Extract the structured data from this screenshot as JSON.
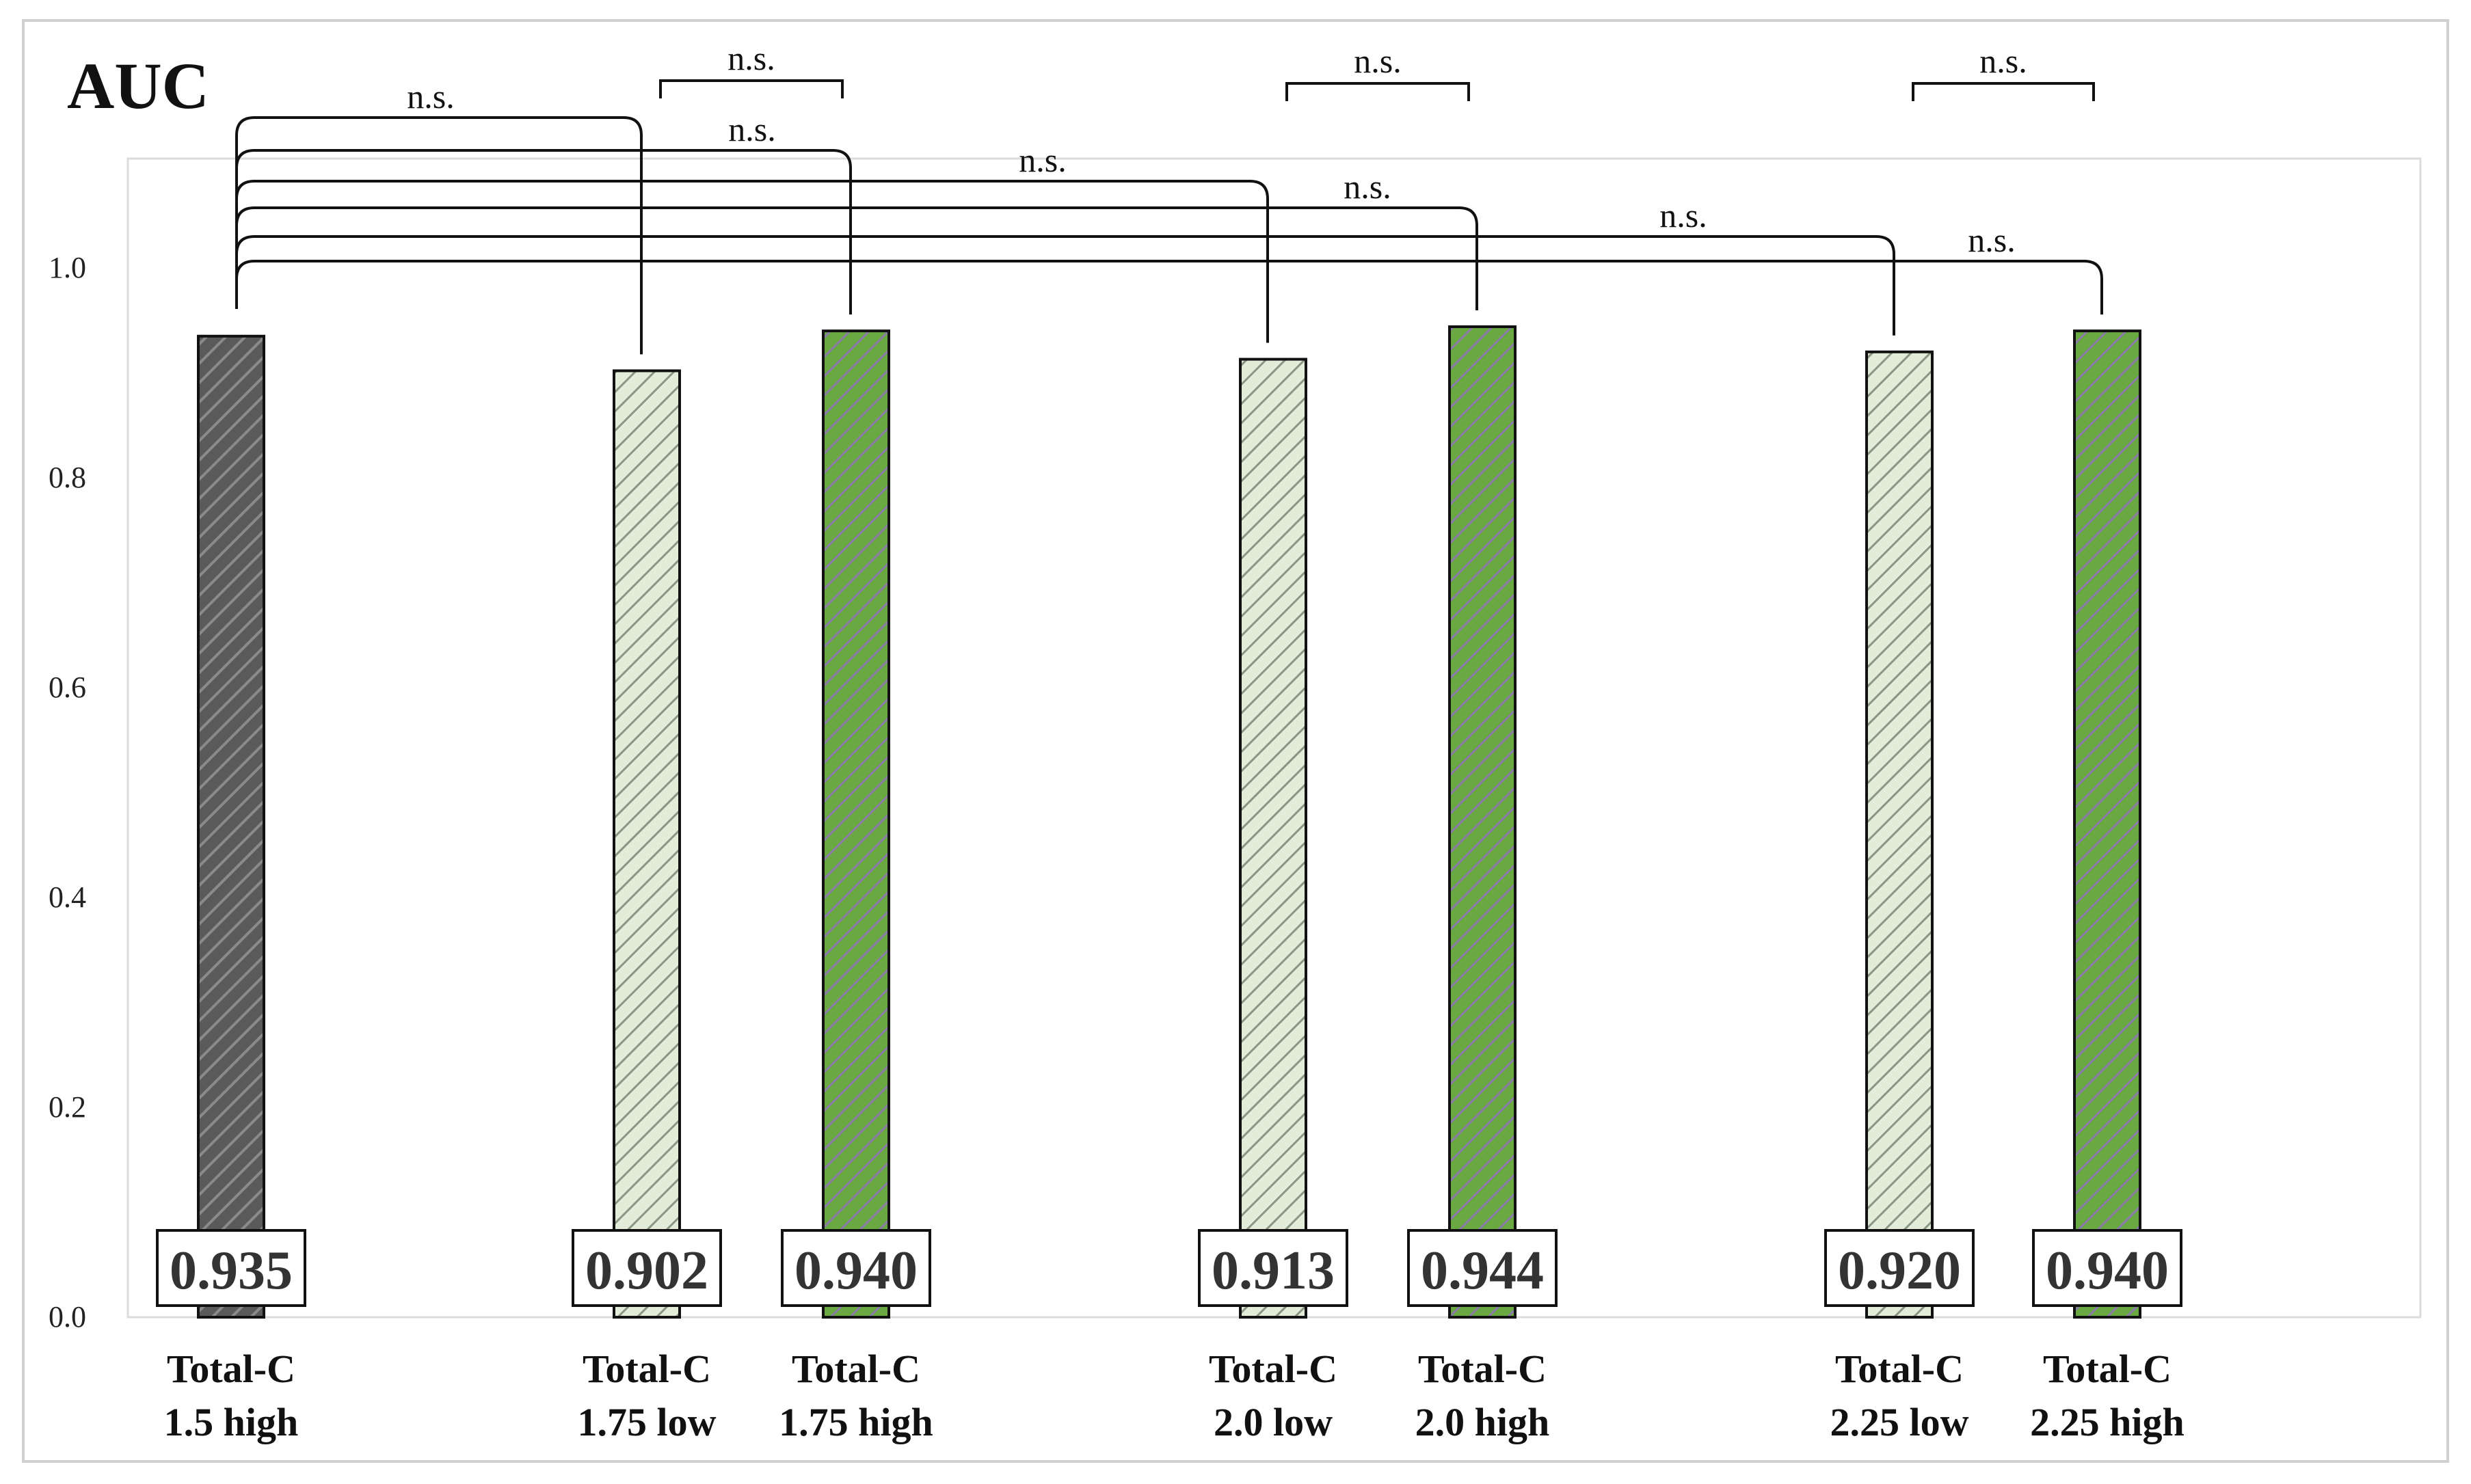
{
  "chart_data": {
    "type": "bar",
    "title": "AUC",
    "ylabel": "",
    "xlabel": "",
    "ylim": [
      0,
      1.1
    ],
    "yticks": [
      "0.0",
      "0.2",
      "0.4",
      "0.6",
      "0.8",
      "1.0"
    ],
    "grid": false,
    "legend": "none",
    "categories": [
      {
        "line1": "Total-C",
        "line2": "1.5 high"
      },
      {
        "line1": "Total-C",
        "line2": "1.75 low"
      },
      {
        "line1": "Total-C",
        "line2": "1.75 high"
      },
      {
        "line1": "Total-C",
        "line2": "2.0 low"
      },
      {
        "line1": "Total-C",
        "line2": "2.0 high"
      },
      {
        "line1": "Total-C",
        "line2": "2.25 low"
      },
      {
        "line1": "Total-C",
        "line2": "2.25 high"
      }
    ],
    "values": [
      0.935,
      0.902,
      0.94,
      0.913,
      0.944,
      0.92,
      0.94
    ],
    "value_labels": [
      "0.935",
      "0.902",
      "0.940",
      "0.913",
      "0.944",
      "0.920",
      "0.940"
    ],
    "bar_styles": [
      "dark",
      "light",
      "green",
      "light",
      "green",
      "light",
      "green"
    ],
    "colors": {
      "dark": "#5a5a5a",
      "light": "#e2ecd8",
      "green": "#6aa842",
      "hatch_dark": "#8a8a8a",
      "hatch_light": "#8a9585",
      "hatch_green": "#8a7aa8",
      "outline": "#111111",
      "frame": "#d0d0d0"
    },
    "comparisons": [
      {
        "from": 1,
        "to": 2,
        "label": "n.s."
      },
      {
        "from": 3,
        "to": 4,
        "label": "n.s."
      },
      {
        "from": 5,
        "to": 6,
        "label": "n.s."
      },
      {
        "from": 0,
        "to": 1,
        "label": "n.s."
      },
      {
        "from": 0,
        "to": 2,
        "label": "n.s."
      },
      {
        "from": 0,
        "to": 3,
        "label": "n.s."
      },
      {
        "from": 0,
        "to": 4,
        "label": "n.s."
      },
      {
        "from": 0,
        "to": 5,
        "label": "n.s."
      },
      {
        "from": 0,
        "to": 6,
        "label": "n.s."
      }
    ]
  }
}
